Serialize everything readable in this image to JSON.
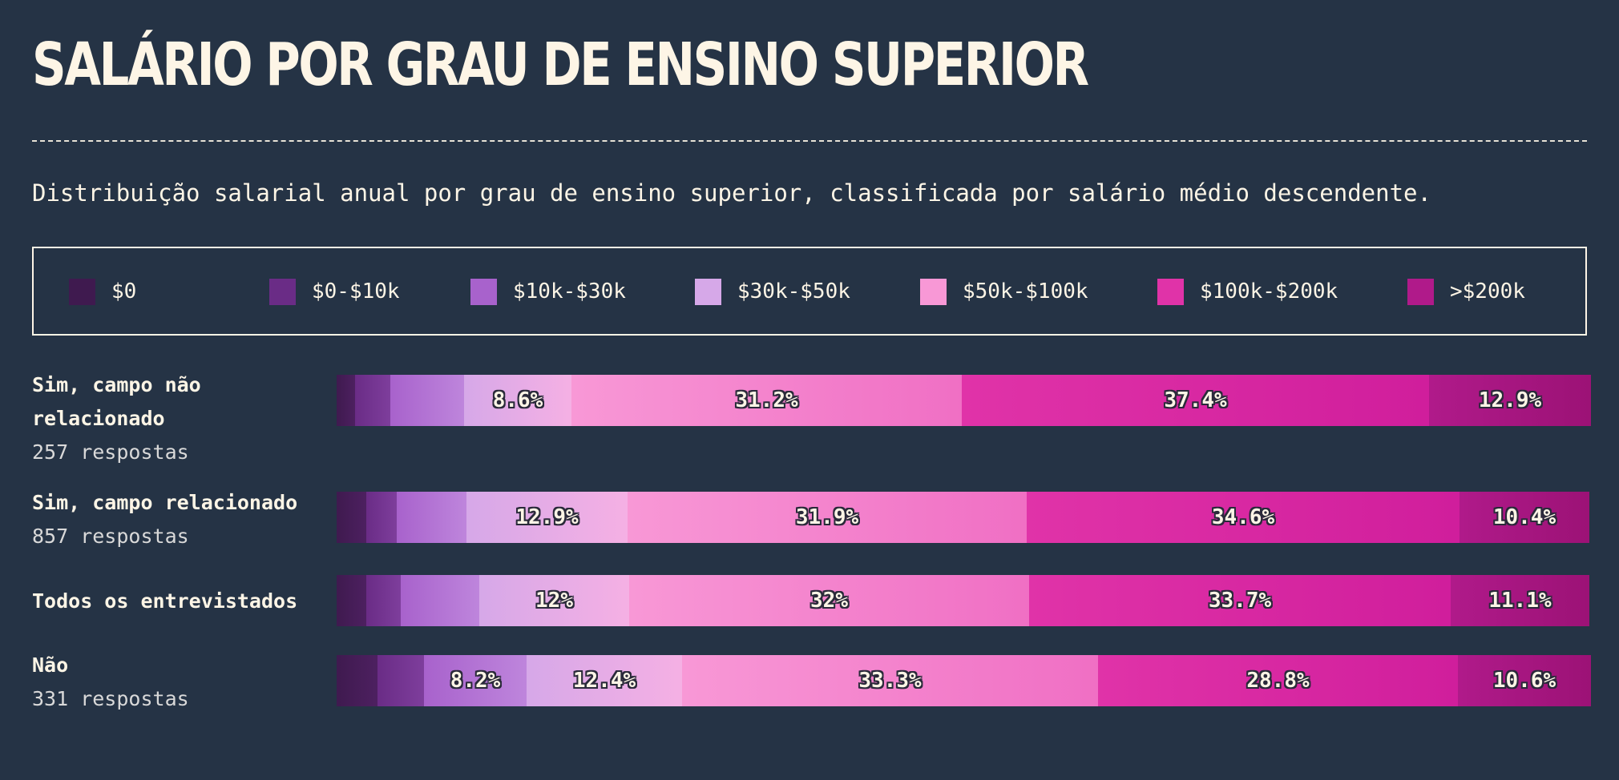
{
  "header": {
    "title": "SALÁRIO POR GRAU DE ENSINO SUPERIOR",
    "subtitle": "Distribuição salarial anual por grau de ensino superior, classificada por salário médio descendente."
  },
  "chart_data": {
    "type": "bar",
    "orientation": "horizontal",
    "stacked": "100%",
    "title": "SALÁRIO POR GRAU DE ENSINO SUPERIOR",
    "subtitle": "Distribuição salarial anual por grau de ensino superior, classificada por salário médio descendente.",
    "legend_position": "top",
    "categories": [
      {
        "name": "Sim, campo não relacionado",
        "count": "257 respostas"
      },
      {
        "name": "Sim, campo relacionado",
        "count": "857 respostas"
      },
      {
        "name": "Todos os entrevistados",
        "count": ""
      },
      {
        "name": "Não",
        "count": "331 respostas"
      }
    ],
    "series": [
      {
        "name": "$0",
        "color": "#3f1a4f",
        "color2": "#4d2060",
        "values": [
          1.5,
          2.4,
          2.4,
          3.3
        ]
      },
      {
        "name": "$0-$10k",
        "color": "#6a2c86",
        "color2": "#7e3e9c",
        "values": [
          2.8,
          2.4,
          2.7,
          3.7
        ]
      },
      {
        "name": "$10k-$30k",
        "color": "#a862cc",
        "color2": "#be85dc",
        "values": [
          5.9,
          5.6,
          6.3,
          8.2
        ]
      },
      {
        "name": "$30k-$50k",
        "color": "#d6a8e8",
        "color2": "#f5b0e4",
        "values": [
          8.6,
          12.9,
          12.0,
          12.4
        ]
      },
      {
        "name": "$50k-$100k",
        "color": "#f898d6",
        "color2": "#f06fc4",
        "values": [
          31.2,
          31.9,
          32.0,
          33.3
        ]
      },
      {
        "name": "$100k-$200k",
        "color": "#e033a8",
        "color2": "#d01e9c",
        "values": [
          37.4,
          34.6,
          33.7,
          28.8
        ]
      },
      {
        "name": ">$200k",
        "color": "#b01a8a",
        "color2": "#9c1276",
        "values": [
          12.9,
          10.4,
          11.1,
          10.6
        ]
      }
    ],
    "data_labels": [
      [
        "",
        "",
        "",
        "8.6%",
        "31.2%",
        "37.4%",
        "12.9%"
      ],
      [
        "",
        "",
        "",
        "12.9%",
        "31.9%",
        "34.6%",
        "10.4%"
      ],
      [
        "",
        "",
        "",
        "12%",
        "32%",
        "33.7%",
        "11.1%"
      ],
      [
        "",
        "",
        "8.2%",
        "12.4%",
        "33.3%",
        "28.8%",
        "10.6%"
      ]
    ],
    "xlim": [
      0,
      100
    ],
    "grid": false
  }
}
